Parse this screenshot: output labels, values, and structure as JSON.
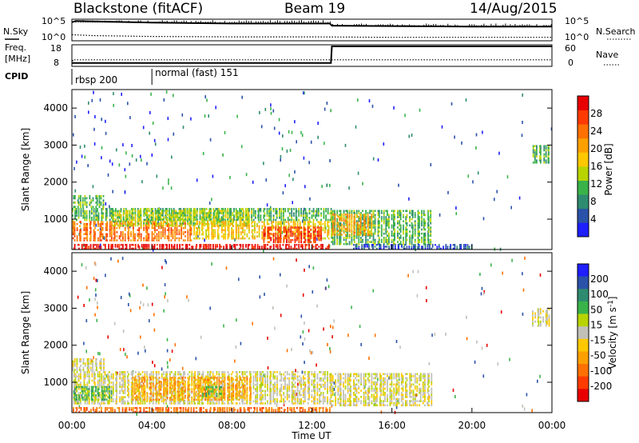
{
  "header": {
    "station": "Blackstone (fitACF)",
    "beam": "Beam 19",
    "date": "14/Aug/2015"
  },
  "side_labels": {
    "nsky": "N.Sky",
    "nsearch": "N.Search",
    "freq_line1": "Freq.",
    "freq_line2": "[MHz]",
    "nave": "Nave",
    "cpid": "CPID"
  },
  "noise_axis": {
    "left_ticks": [
      "10^5",
      "10^0"
    ],
    "right_ticks": [
      "10^5",
      "10^0"
    ]
  },
  "freq_axis": {
    "left_ticks": [
      "18",
      "8"
    ],
    "right_ticks": [
      "60",
      "0"
    ]
  },
  "cpid_segments": [
    {
      "label": "rbsp 200",
      "start_hour": 0
    },
    {
      "label": "normal (fast) 151",
      "start_hour": 4
    }
  ],
  "chart_data": [
    {
      "type": "line",
      "title": "Blackstone (fitACF) Beam 19 14/Aug/2015",
      "panel": "noise",
      "series": [
        {
          "name": "N.Sky",
          "x": [
            0,
            0.2,
            1,
            2,
            4,
            6,
            8,
            10,
            12,
            12.9,
            13,
            16,
            20,
            24
          ],
          "y": [
            4.3,
            4.6,
            4.5,
            4.4,
            4.2,
            4.1,
            4.0,
            4.0,
            4.0,
            4.0,
            3.5,
            3.4,
            3.3,
            3.3
          ]
        },
        {
          "name": "N.Search",
          "x": [
            0,
            1,
            4,
            8,
            12,
            16,
            20,
            24
          ],
          "y": [
            1.4,
            1.2,
            1.0,
            0.9,
            0.9,
            0.8,
            0.8,
            0.8
          ]
        }
      ],
      "xlim": [
        0,
        24
      ]
    },
    {
      "type": "line",
      "panel": "frequency",
      "series": [
        {
          "name": "Freq.",
          "unit": "MHz",
          "x": [
            0,
            0.05,
            24
          ],
          "y": [
            8,
            10.5,
            10.5
          ]
        },
        {
          "name": "Nave",
          "x": [
            0,
            12.95,
            13.0,
            24
          ],
          "y": [
            8,
            8,
            60,
            60
          ]
        }
      ],
      "xlim": [
        0,
        24
      ]
    },
    {
      "type": "heatmap",
      "panel": "power",
      "xlabel": "Time UT",
      "ylabel": "Slant Range [km]",
      "colorbar_label": "Power [dB]",
      "colorbar_ticks": [
        4,
        8,
        12,
        16,
        20,
        24,
        28
      ],
      "colorbar_colors": [
        "#1e1eff",
        "#2a52a8",
        "#2e8b6f",
        "#3ab24a",
        "#b8d400",
        "#ffc800",
        "#ffa000",
        "#ff7000",
        "#ff3a00",
        "#e80000"
      ],
      "xlim": [
        0,
        24
      ],
      "ylim": [
        180,
        4500
      ],
      "yticks": [
        1000,
        2000,
        3000,
        4000
      ],
      "regions": [
        {
          "t0": 0.0,
          "t1": 1.6,
          "r0": 1300,
          "r1": 1650,
          "level": 3
        },
        {
          "t0": 0.0,
          "t1": 13.0,
          "r0": 950,
          "r1": 1300,
          "level": 3
        },
        {
          "t0": 0.0,
          "t1": 6.0,
          "r0": 400,
          "r1": 950,
          "level": 7
        },
        {
          "t0": 2.0,
          "t1": 9.0,
          "r0": 800,
          "r1": 1250,
          "level": 4
        },
        {
          "t0": 6.0,
          "t1": 13.0,
          "r0": 450,
          "r1": 950,
          "level": 5
        },
        {
          "t0": 9.5,
          "t1": 12.5,
          "r0": 350,
          "r1": 800,
          "level": 8
        },
        {
          "t0": 0.0,
          "t1": 12.9,
          "r0": 180,
          "r1": 330,
          "level": 9
        },
        {
          "t0": 12.9,
          "t1": 18.0,
          "r0": 300,
          "r1": 1250,
          "level": 3
        },
        {
          "t0": 13.0,
          "t1": 15.0,
          "r0": 550,
          "r1": 1150,
          "level": 6
        },
        {
          "t0": 14.0,
          "t1": 20.0,
          "r0": 180,
          "r1": 330,
          "level": 1
        },
        {
          "t0": 23.0,
          "t1": 23.9,
          "r0": 2500,
          "r1": 3000,
          "level": 3
        }
      ]
    },
    {
      "type": "heatmap",
      "panel": "velocity",
      "xlabel": "Time UT",
      "ylabel": "Slant Range [km]",
      "colorbar_label": "Velocity [m s^-1]",
      "colorbar_ticks": [
        200,
        100,
        50,
        15,
        -15,
        -50,
        -100,
        -200
      ],
      "colorbar_colors": [
        "#1e1eff",
        "#2a52a8",
        "#2e8b6f",
        "#3ab24a",
        "#b8d400",
        "#c0c0b8",
        "#ffc800",
        "#ffa000",
        "#ff7000",
        "#ff3a00",
        "#e80000"
      ],
      "xlim": [
        0,
        24
      ],
      "ylim": [
        180,
        4500
      ],
      "yticks": [
        1000,
        2000,
        3000,
        4000
      ],
      "xticks": [
        "00:00",
        "04:00",
        "08:00",
        "12:00",
        "16:00",
        "20:00",
        "00:00"
      ],
      "regions": [
        {
          "t0": 0.0,
          "t1": 1.6,
          "r0": 1300,
          "r1": 1650,
          "level": 5
        },
        {
          "t0": 0.0,
          "t1": 13.0,
          "r0": 400,
          "r1": 1300,
          "level": 5
        },
        {
          "t0": 3.0,
          "t1": 9.0,
          "r0": 500,
          "r1": 1150,
          "level": 7
        },
        {
          "t0": 6.5,
          "t1": 7.5,
          "r0": 600,
          "r1": 900,
          "level": 3
        },
        {
          "t0": 0.0,
          "t1": 2.0,
          "r0": 500,
          "r1": 900,
          "level": 3
        },
        {
          "t0": 0.0,
          "t1": 12.9,
          "r0": 180,
          "r1": 330,
          "level": 8
        },
        {
          "t0": 12.9,
          "t1": 18.0,
          "r0": 350,
          "r1": 1250,
          "level": 5
        },
        {
          "t0": 23.0,
          "t1": 23.9,
          "r0": 2500,
          "r1": 3000,
          "level": 5
        }
      ]
    }
  ]
}
